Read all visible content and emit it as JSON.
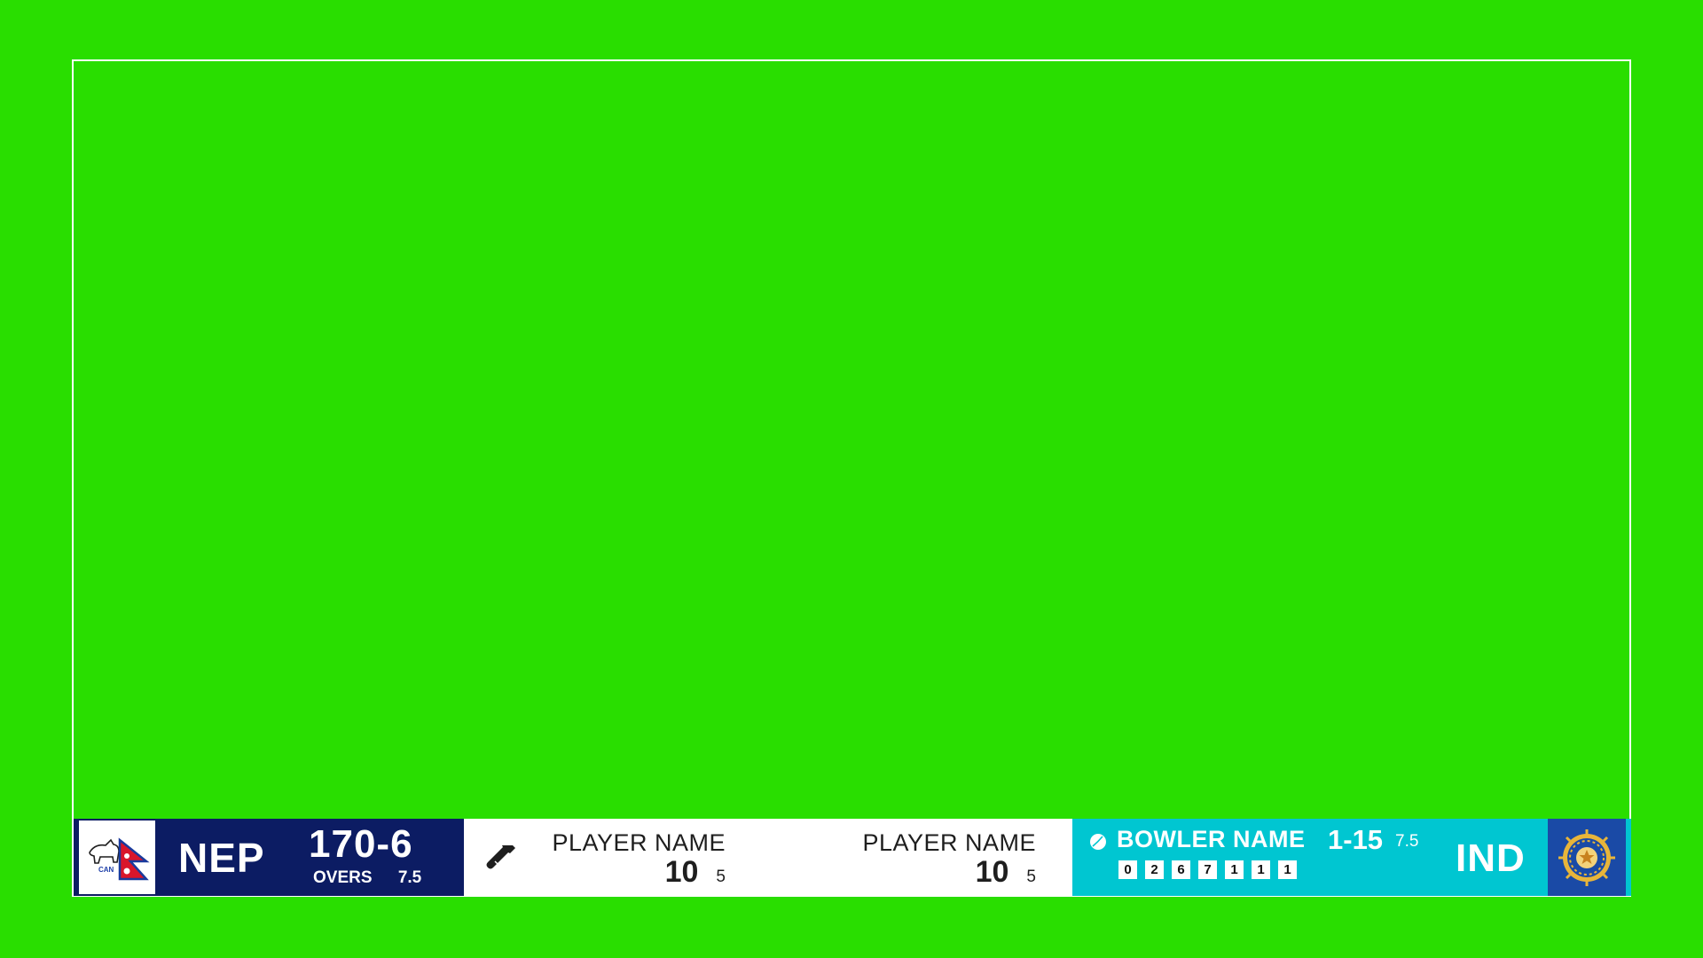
{
  "colors": {
    "chroma_green": "#29de00",
    "left_panel": "#0c1c63",
    "right_panel": "#00c6d1",
    "opponent_logo_bg": "#1a4aa6"
  },
  "batting_team": {
    "code": "NEP",
    "score": "170-6",
    "overs_label": "OVERS",
    "overs": "7.5",
    "logo_text": "CAN",
    "logo_icon": "nepal-flag-icon"
  },
  "batters": [
    {
      "name": "PLAYER NAME",
      "runs": "10",
      "balls": "5"
    },
    {
      "name": "PLAYER NAME",
      "runs": "10",
      "balls": "5"
    }
  ],
  "bowler": {
    "name": "BOWLER NAME",
    "figures": "1-15",
    "overs": "7.5",
    "this_over": [
      "0",
      "2",
      "6",
      "7",
      "1",
      "1",
      "1"
    ]
  },
  "bowling_team": {
    "code": "IND",
    "logo_icon": "bcci-emblem-icon"
  }
}
